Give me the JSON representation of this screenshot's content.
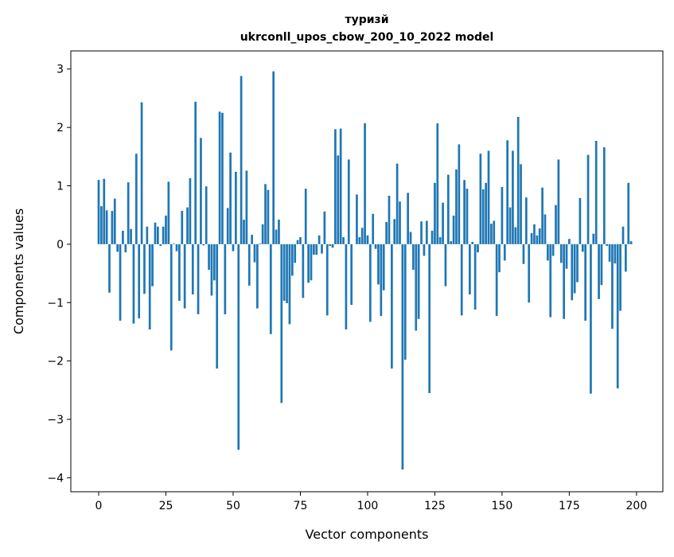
{
  "chart_data": {
    "type": "bar",
    "title": "туризй",
    "subtitle": "ukrconll_upos_cbow_200_10_2022 model",
    "xlabel": "Vector components",
    "ylabel": "Components values",
    "xlim": [
      -10.36,
      209.8
    ],
    "ylim": [
      -4.24,
      3.31
    ],
    "xticks": [
      0,
      25,
      50,
      75,
      100,
      125,
      150,
      175,
      200
    ],
    "yticks": [
      -4,
      -3,
      -2,
      -1,
      0,
      1,
      2,
      3
    ],
    "xtick_labels": [
      "0",
      "25",
      "50",
      "75",
      "100",
      "125",
      "150",
      "175",
      "200"
    ],
    "ytick_labels": [
      "−4",
      "−3",
      "−2",
      "−1",
      "0",
      "1",
      "2",
      "3"
    ],
    "grid": false,
    "bar_color": "#1f77b4",
    "values": [
      1.1,
      0.65,
      1.12,
      0.58,
      -0.83,
      0.57,
      0.78,
      -0.13,
      -1.31,
      0.23,
      -0.14,
      1.06,
      0.26,
      -1.36,
      1.55,
      -1.27,
      2.43,
      -0.85,
      0.3,
      -1.46,
      -0.72,
      0.37,
      0.3,
      -0.03,
      0.3,
      0.49,
      1.07,
      -1.82,
      0.01,
      -0.12,
      -0.97,
      0.57,
      -1.1,
      0.63,
      1.13,
      -0.86,
      2.44,
      -1.2,
      1.82,
      -0.02,
      0.99,
      -0.44,
      -0.88,
      -0.62,
      -2.13,
      2.27,
      2.25,
      -1.2,
      0.62,
      1.57,
      -0.12,
      1.24,
      -3.52,
      2.88,
      0.42,
      1.26,
      -0.71,
      0.16,
      -0.31,
      -1.1,
      0.01,
      0.34,
      1.03,
      0.93,
      -1.54,
      2.96,
      0.25,
      0.42,
      -2.72,
      -0.97,
      -1.01,
      -1.37,
      -0.54,
      -0.32,
      0.07,
      0.12,
      -0.92,
      0.95,
      -0.66,
      -0.62,
      -0.18,
      -0.18,
      0.15,
      -0.16,
      0.56,
      -1.22,
      -0.03,
      -0.06,
      1.97,
      1.52,
      1.98,
      0.12,
      -1.46,
      1.45,
      -1.04,
      0.0,
      0.85,
      0.12,
      0.28,
      2.07,
      0.15,
      -1.33,
      0.52,
      -0.08,
      -0.69,
      -1.23,
      -0.79,
      0.38,
      0.83,
      -2.13,
      0.43,
      1.38,
      0.73,
      -3.86,
      -1.98,
      0.88,
      0.21,
      -0.44,
      -1.48,
      -1.28,
      0.39,
      -0.2,
      0.4,
      -2.55,
      0.23,
      1.05,
      2.07,
      0.12,
      0.71,
      -0.72,
      1.19,
      0.05,
      0.49,
      1.28,
      1.71,
      -1.22,
      1.1,
      0.95,
      -0.86,
      0.04,
      -1.12,
      -0.14,
      1.55,
      0.94,
      1.05,
      1.6,
      0.35,
      0.4,
      -1.23,
      -0.48,
      0.98,
      -0.28,
      1.78,
      0.63,
      1.6,
      0.29,
      2.18,
      1.37,
      -0.34,
      0.8,
      -1.0,
      0.19,
      0.34,
      0.15,
      0.27,
      0.97,
      0.51,
      -0.28,
      -1.25,
      -0.2,
      0.67,
      1.45,
      -0.32,
      -1.28,
      -0.42,
      0.09,
      -0.96,
      -0.84,
      -0.65,
      0.79,
      -0.13,
      -1.31,
      1.53,
      -2.56,
      0.18,
      1.77,
      -0.94,
      -0.7,
      1.66,
      -0.03,
      -0.3,
      -1.45,
      -0.33,
      -2.47,
      -1.14,
      0.3,
      -0.47,
      1.05,
      0.05
    ]
  }
}
